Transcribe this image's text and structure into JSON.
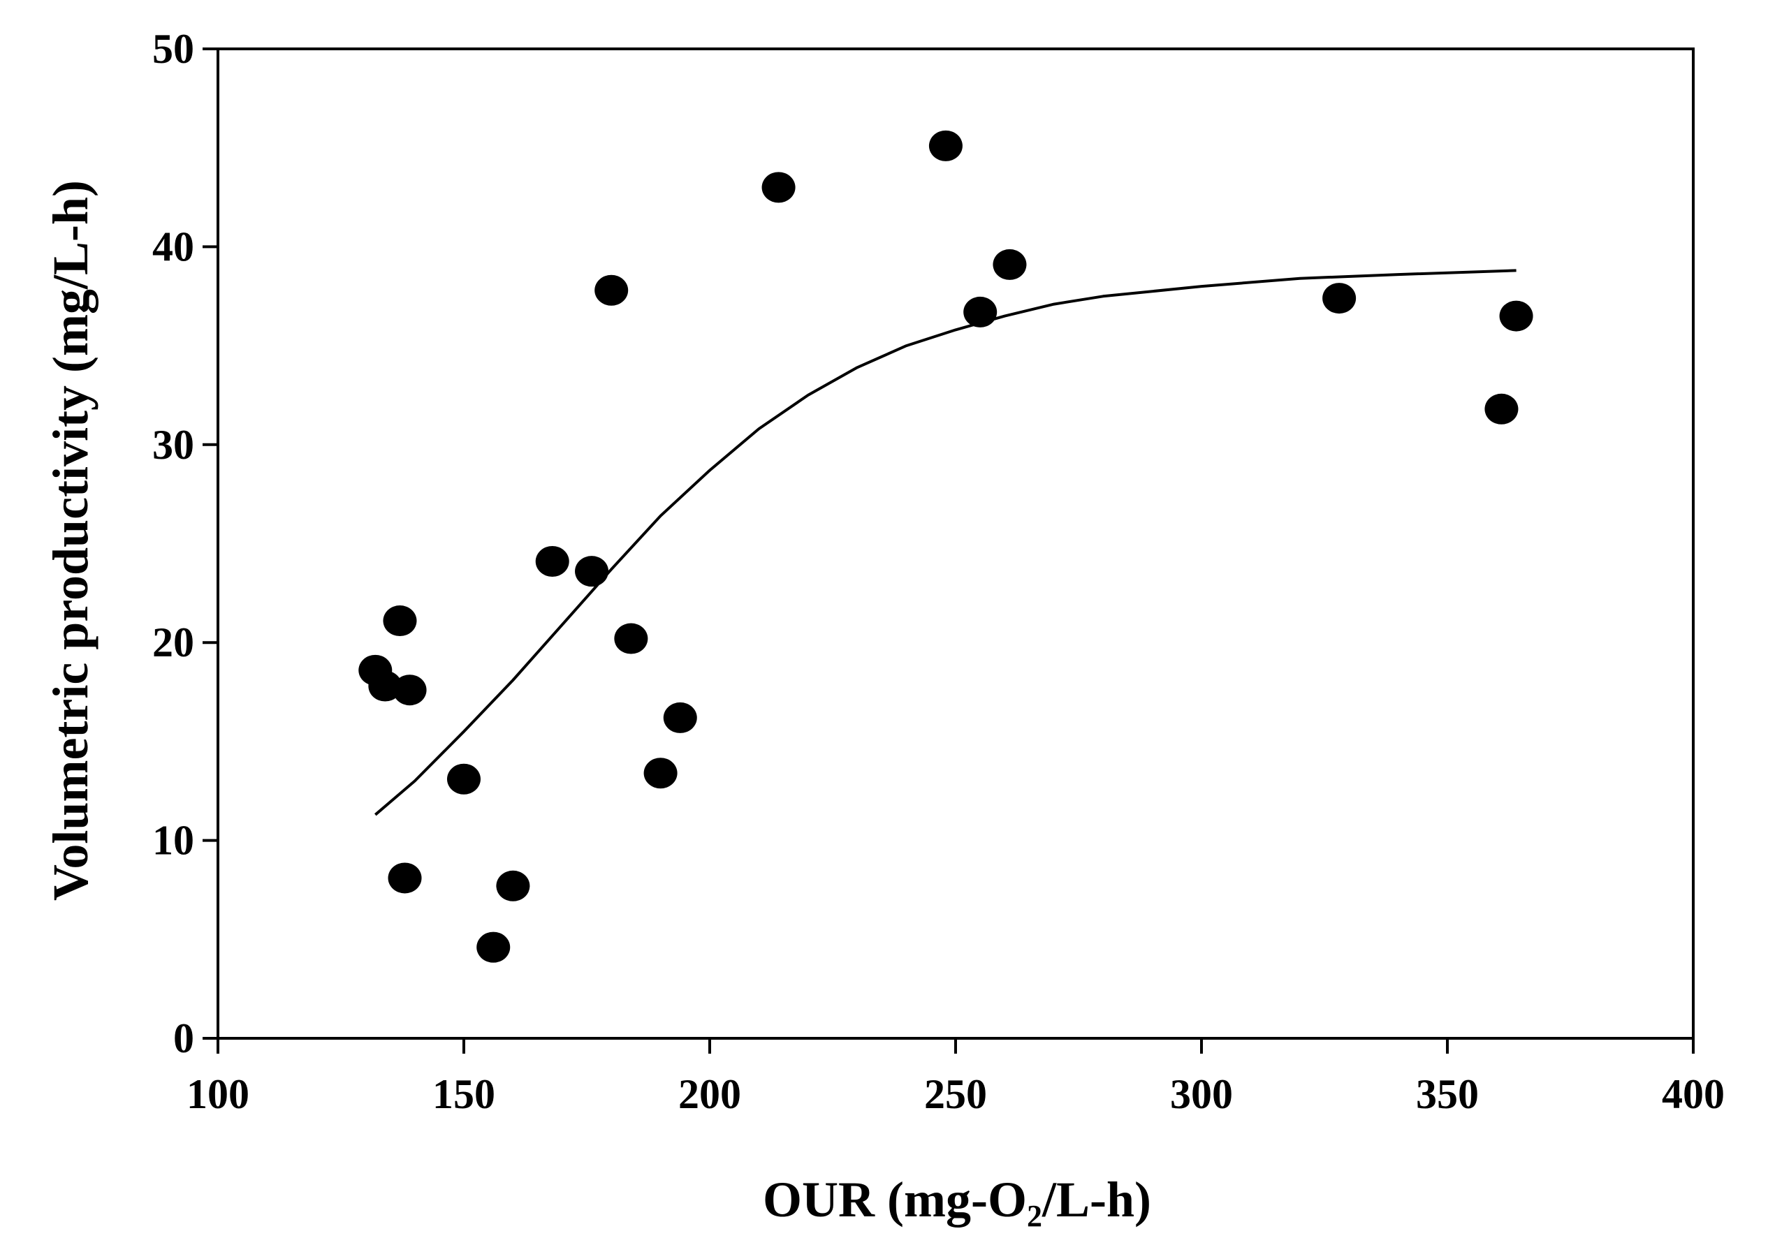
{
  "chart_data": {
    "type": "scatter",
    "title": "",
    "xlabel": {
      "main": "OUR (mg-O",
      "subscript": "2",
      "suffix": "/L-h)"
    },
    "ylabel": "Volumetric productivity (mg/L-h)",
    "xlim": [
      100,
      400
    ],
    "ylim": [
      0,
      50
    ],
    "xticks": [
      100,
      150,
      200,
      250,
      300,
      350,
      400
    ],
    "yticks": [
      0,
      10,
      20,
      30,
      40,
      50
    ],
    "xtick_labels": [
      "100",
      "150",
      "200",
      "250",
      "300",
      "350",
      "400"
    ],
    "ytick_labels": [
      "0",
      "10",
      "20",
      "30",
      "40",
      "50"
    ],
    "grid": false,
    "legend": "none",
    "series": [
      {
        "name": "data",
        "kind": "scatter",
        "color": "#000000",
        "points": [
          {
            "x": 132,
            "y": 18.6
          },
          {
            "x": 134,
            "y": 17.8
          },
          {
            "x": 137,
            "y": 21.1
          },
          {
            "x": 139,
            "y": 17.6
          },
          {
            "x": 138,
            "y": 8.1
          },
          {
            "x": 150,
            "y": 13.1
          },
          {
            "x": 156,
            "y": 4.6
          },
          {
            "x": 160,
            "y": 7.7
          },
          {
            "x": 168,
            "y": 24.1
          },
          {
            "x": 176,
            "y": 23.6
          },
          {
            "x": 180,
            "y": 37.8
          },
          {
            "x": 184,
            "y": 20.2
          },
          {
            "x": 190,
            "y": 13.4
          },
          {
            "x": 194,
            "y": 16.2
          },
          {
            "x": 214,
            "y": 43.0
          },
          {
            "x": 248,
            "y": 45.1
          },
          {
            "x": 255,
            "y": 36.7
          },
          {
            "x": 261,
            "y": 39.1
          },
          {
            "x": 328,
            "y": 37.4
          },
          {
            "x": 361,
            "y": 31.8
          },
          {
            "x": 364,
            "y": 36.5
          }
        ]
      },
      {
        "name": "fit",
        "kind": "line",
        "color": "#000000",
        "x": [
          132,
          140,
          150,
          160,
          170,
          180,
          190,
          200,
          210,
          220,
          230,
          240,
          250,
          260,
          270,
          280,
          300,
          320,
          340,
          364
        ],
        "y": [
          11.3,
          13.0,
          15.5,
          18.1,
          20.9,
          23.7,
          26.4,
          28.7,
          30.8,
          32.5,
          33.9,
          35.0,
          35.8,
          36.5,
          37.1,
          37.5,
          38.0,
          38.4,
          38.6,
          38.8
        ]
      }
    ]
  }
}
